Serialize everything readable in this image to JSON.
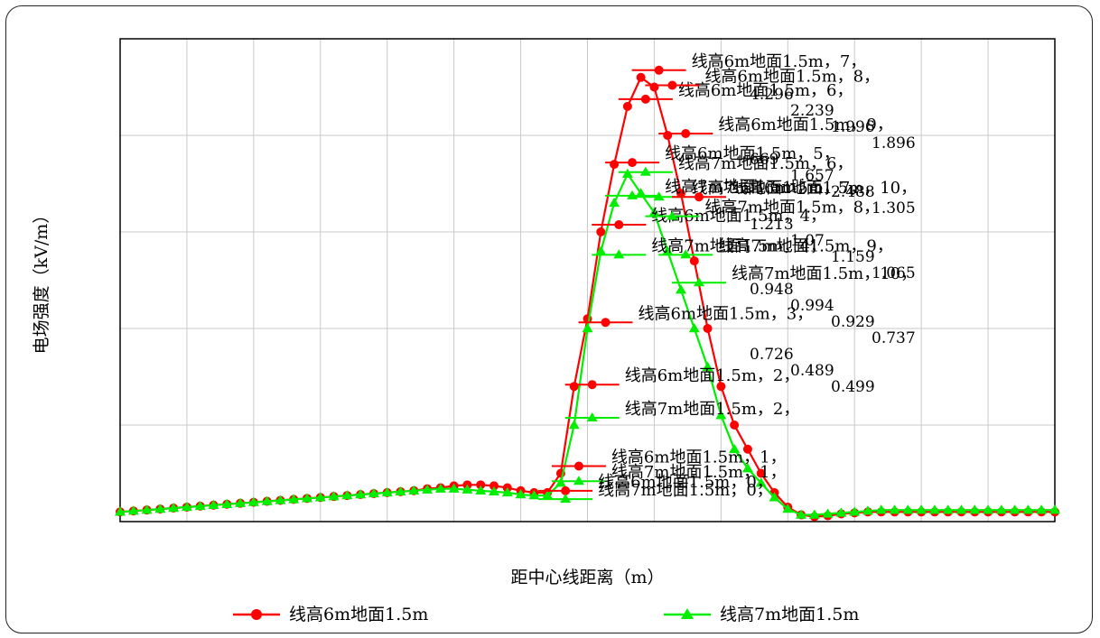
{
  "chart_data": {
    "type": "line",
    "title": "",
    "xlabel": "距中心线距离（m）",
    "ylabel": "电场强度（kV/m）",
    "xlim": [
      -35,
      35
    ],
    "ylim": [
      0,
      5
    ],
    "grid": true,
    "legend_position": "bottom",
    "x": [
      -35,
      -34,
      -33,
      -32,
      -31,
      -30,
      -29,
      -28,
      -27,
      -26,
      -25,
      -24,
      -23,
      -22,
      -21,
      -20,
      -19,
      -18,
      -17,
      -16,
      -15,
      -14,
      -13,
      -12,
      -11,
      -10,
      -9,
      -8,
      -7,
      -6,
      -5,
      -4,
      -3,
      -2,
      -1,
      0,
      1,
      2,
      3,
      4,
      5,
      6,
      7,
      8,
      9,
      10,
      11,
      12,
      13,
      14,
      15,
      16,
      17,
      18,
      19,
      20,
      21,
      22,
      23,
      24,
      25,
      26,
      27,
      28,
      29,
      30,
      31,
      32,
      33,
      34,
      35
    ],
    "series": [
      {
        "name": "线高6m地面1.5m",
        "color": "#ff0000",
        "marker": "circle",
        "values": [
          0.1,
          0.11,
          0.12,
          0.13,
          0.14,
          0.15,
          0.16,
          0.17,
          0.18,
          0.19,
          0.2,
          0.21,
          0.22,
          0.23,
          0.24,
          0.25,
          0.26,
          0.27,
          0.28,
          0.29,
          0.3,
          0.31,
          0.32,
          0.34,
          0.35,
          0.37,
          0.38,
          0.38,
          0.37,
          0.35,
          0.32,
          0.3,
          0.3,
          0.5,
          1.4,
          2.1,
          3.0,
          3.7,
          4.3,
          4.6,
          4.5,
          4.0,
          3.4,
          2.7,
          2.0,
          1.4,
          1.0,
          0.75,
          0.5,
          0.3,
          0.15,
          0.07,
          0.05,
          0.06,
          0.08,
          0.09,
          0.1,
          0.1,
          0.1,
          0.1,
          0.1,
          0.1,
          0.1,
          0.1,
          0.1,
          0.1,
          0.1,
          0.1,
          0.1,
          0.1,
          0.1
        ]
      },
      {
        "name": "线高7m地面1.5m",
        "color": "#00ee00",
        "marker": "triangle",
        "values": [
          0.1,
          0.11,
          0.12,
          0.13,
          0.14,
          0.15,
          0.16,
          0.17,
          0.18,
          0.19,
          0.2,
          0.21,
          0.22,
          0.23,
          0.24,
          0.25,
          0.26,
          0.27,
          0.28,
          0.29,
          0.3,
          0.31,
          0.32,
          0.33,
          0.34,
          0.34,
          0.33,
          0.32,
          0.31,
          0.3,
          0.28,
          0.27,
          0.27,
          0.4,
          1.0,
          2.0,
          2.8,
          3.3,
          3.6,
          3.4,
          3.2,
          2.8,
          2.4,
          2.0,
          1.6,
          1.1,
          0.75,
          0.55,
          0.4,
          0.25,
          0.13,
          0.07,
          0.07,
          0.08,
          0.09,
          0.1,
          0.11,
          0.12,
          0.12,
          0.12,
          0.12,
          0.12,
          0.12,
          0.12,
          0.12,
          0.12,
          0.12,
          0.12,
          0.12,
          0.12,
          0.12
        ]
      }
    ],
    "annotations": [
      {
        "series": 0,
        "x": 1,
        "text": "线高6m地面1.5m，4，"
      },
      {
        "series": 0,
        "x": 2,
        "text": "线高6m地面1.5m，5，"
      },
      {
        "series": 0,
        "x": 0,
        "text": "线高6m地面1.5m，3，"
      },
      {
        "series": 0,
        "x": 3,
        "text": "线高6m地面1.5m，6，"
      },
      {
        "series": 0,
        "x": -1,
        "text": "线高6m地面1.5m，2，"
      },
      {
        "series": 1,
        "x": 1,
        "text": "线高7m地面1.5m，4，"
      },
      {
        "series": 1,
        "x": 2,
        "text": "线高7m地面1.5m，5，"
      },
      {
        "series": 1,
        "x": 3,
        "text": "线高7m地面1.5m，6，"
      },
      {
        "series": 1,
        "x": 4,
        "text": "线高7m地面1.5m，7，"
      },
      {
        "series": 0,
        "x": 4,
        "text": "线高6m地面1.5m，7，"
      },
      {
        "series": 0,
        "x": 5,
        "text": "线高6m地面1.5m，8，"
      },
      {
        "series": 1,
        "x": 5,
        "text": "线高7m地面1.5m，8，"
      },
      {
        "series": 1,
        "x": -1,
        "text": "线高7m地面1.5m，2，"
      },
      {
        "series": 0,
        "x": 6,
        "text": "线高6m地面1.5m，9，"
      },
      {
        "series": 1,
        "x": 6,
        "text": "线高7m地面1.5m，9，"
      },
      {
        "series": 0,
        "x": -2,
        "text": "线高6m地面1.5m，1，"
      },
      {
        "series": 1,
        "x": -2,
        "text": "线高7m地面1.5m，1，"
      },
      {
        "series": 0,
        "x": 7,
        "text": "线高6m地面1.5m，10，"
      },
      {
        "series": 1,
        "x": 7,
        "text": "线高7m地面1.5m，10，"
      },
      {
        "series": 0,
        "x": -3,
        "text": "线高6m地面1.5m，0，"
      },
      {
        "series": 1,
        "x": -3,
        "text": "线高7m地面1.5m，0，"
      }
    ],
    "value_labels": [
      "4.296",
      "2.239",
      "1.996",
      "1.896",
      "669",
      "1.657",
      "2.488",
      "1.305",
      "1.213",
      "1.07",
      "1.159",
      "1.065",
      "0.948",
      "0.994",
      "0.929",
      "0.737",
      "0.726",
      "0.489",
      "0.499"
    ]
  }
}
